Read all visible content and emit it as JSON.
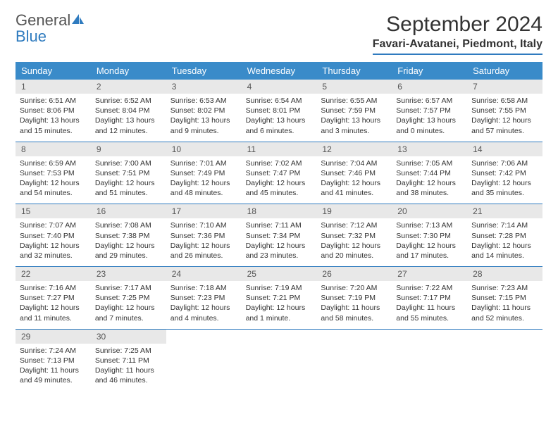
{
  "logo": {
    "text1": "General",
    "text2": "Blue"
  },
  "title": "September 2024",
  "location": "Favari-Avatanei, Piedmont, Italy",
  "colors": {
    "header_bg": "#3a8bc9",
    "rule": "#2f7bbf",
    "daynum_bg": "#e8e8e8",
    "text": "#333333"
  },
  "weekdays": [
    "Sunday",
    "Monday",
    "Tuesday",
    "Wednesday",
    "Thursday",
    "Friday",
    "Saturday"
  ],
  "weeks": [
    [
      {
        "n": "1",
        "sr": "Sunrise: 6:51 AM",
        "ss": "Sunset: 8:06 PM",
        "d1": "Daylight: 13 hours",
        "d2": "and 15 minutes."
      },
      {
        "n": "2",
        "sr": "Sunrise: 6:52 AM",
        "ss": "Sunset: 8:04 PM",
        "d1": "Daylight: 13 hours",
        "d2": "and 12 minutes."
      },
      {
        "n": "3",
        "sr": "Sunrise: 6:53 AM",
        "ss": "Sunset: 8:02 PM",
        "d1": "Daylight: 13 hours",
        "d2": "and 9 minutes."
      },
      {
        "n": "4",
        "sr": "Sunrise: 6:54 AM",
        "ss": "Sunset: 8:01 PM",
        "d1": "Daylight: 13 hours",
        "d2": "and 6 minutes."
      },
      {
        "n": "5",
        "sr": "Sunrise: 6:55 AM",
        "ss": "Sunset: 7:59 PM",
        "d1": "Daylight: 13 hours",
        "d2": "and 3 minutes."
      },
      {
        "n": "6",
        "sr": "Sunrise: 6:57 AM",
        "ss": "Sunset: 7:57 PM",
        "d1": "Daylight: 13 hours",
        "d2": "and 0 minutes."
      },
      {
        "n": "7",
        "sr": "Sunrise: 6:58 AM",
        "ss": "Sunset: 7:55 PM",
        "d1": "Daylight: 12 hours",
        "d2": "and 57 minutes."
      }
    ],
    [
      {
        "n": "8",
        "sr": "Sunrise: 6:59 AM",
        "ss": "Sunset: 7:53 PM",
        "d1": "Daylight: 12 hours",
        "d2": "and 54 minutes."
      },
      {
        "n": "9",
        "sr": "Sunrise: 7:00 AM",
        "ss": "Sunset: 7:51 PM",
        "d1": "Daylight: 12 hours",
        "d2": "and 51 minutes."
      },
      {
        "n": "10",
        "sr": "Sunrise: 7:01 AM",
        "ss": "Sunset: 7:49 PM",
        "d1": "Daylight: 12 hours",
        "d2": "and 48 minutes."
      },
      {
        "n": "11",
        "sr": "Sunrise: 7:02 AM",
        "ss": "Sunset: 7:47 PM",
        "d1": "Daylight: 12 hours",
        "d2": "and 45 minutes."
      },
      {
        "n": "12",
        "sr": "Sunrise: 7:04 AM",
        "ss": "Sunset: 7:46 PM",
        "d1": "Daylight: 12 hours",
        "d2": "and 41 minutes."
      },
      {
        "n": "13",
        "sr": "Sunrise: 7:05 AM",
        "ss": "Sunset: 7:44 PM",
        "d1": "Daylight: 12 hours",
        "d2": "and 38 minutes."
      },
      {
        "n": "14",
        "sr": "Sunrise: 7:06 AM",
        "ss": "Sunset: 7:42 PM",
        "d1": "Daylight: 12 hours",
        "d2": "and 35 minutes."
      }
    ],
    [
      {
        "n": "15",
        "sr": "Sunrise: 7:07 AM",
        "ss": "Sunset: 7:40 PM",
        "d1": "Daylight: 12 hours",
        "d2": "and 32 minutes."
      },
      {
        "n": "16",
        "sr": "Sunrise: 7:08 AM",
        "ss": "Sunset: 7:38 PM",
        "d1": "Daylight: 12 hours",
        "d2": "and 29 minutes."
      },
      {
        "n": "17",
        "sr": "Sunrise: 7:10 AM",
        "ss": "Sunset: 7:36 PM",
        "d1": "Daylight: 12 hours",
        "d2": "and 26 minutes."
      },
      {
        "n": "18",
        "sr": "Sunrise: 7:11 AM",
        "ss": "Sunset: 7:34 PM",
        "d1": "Daylight: 12 hours",
        "d2": "and 23 minutes."
      },
      {
        "n": "19",
        "sr": "Sunrise: 7:12 AM",
        "ss": "Sunset: 7:32 PM",
        "d1": "Daylight: 12 hours",
        "d2": "and 20 minutes."
      },
      {
        "n": "20",
        "sr": "Sunrise: 7:13 AM",
        "ss": "Sunset: 7:30 PM",
        "d1": "Daylight: 12 hours",
        "d2": "and 17 minutes."
      },
      {
        "n": "21",
        "sr": "Sunrise: 7:14 AM",
        "ss": "Sunset: 7:28 PM",
        "d1": "Daylight: 12 hours",
        "d2": "and 14 minutes."
      }
    ],
    [
      {
        "n": "22",
        "sr": "Sunrise: 7:16 AM",
        "ss": "Sunset: 7:27 PM",
        "d1": "Daylight: 12 hours",
        "d2": "and 11 minutes."
      },
      {
        "n": "23",
        "sr": "Sunrise: 7:17 AM",
        "ss": "Sunset: 7:25 PM",
        "d1": "Daylight: 12 hours",
        "d2": "and 7 minutes."
      },
      {
        "n": "24",
        "sr": "Sunrise: 7:18 AM",
        "ss": "Sunset: 7:23 PM",
        "d1": "Daylight: 12 hours",
        "d2": "and 4 minutes."
      },
      {
        "n": "25",
        "sr": "Sunrise: 7:19 AM",
        "ss": "Sunset: 7:21 PM",
        "d1": "Daylight: 12 hours",
        "d2": "and 1 minute."
      },
      {
        "n": "26",
        "sr": "Sunrise: 7:20 AM",
        "ss": "Sunset: 7:19 PM",
        "d1": "Daylight: 11 hours",
        "d2": "and 58 minutes."
      },
      {
        "n": "27",
        "sr": "Sunrise: 7:22 AM",
        "ss": "Sunset: 7:17 PM",
        "d1": "Daylight: 11 hours",
        "d2": "and 55 minutes."
      },
      {
        "n": "28",
        "sr": "Sunrise: 7:23 AM",
        "ss": "Sunset: 7:15 PM",
        "d1": "Daylight: 11 hours",
        "d2": "and 52 minutes."
      }
    ],
    [
      {
        "n": "29",
        "sr": "Sunrise: 7:24 AM",
        "ss": "Sunset: 7:13 PM",
        "d1": "Daylight: 11 hours",
        "d2": "and 49 minutes."
      },
      {
        "n": "30",
        "sr": "Sunrise: 7:25 AM",
        "ss": "Sunset: 7:11 PM",
        "d1": "Daylight: 11 hours",
        "d2": "and 46 minutes."
      },
      null,
      null,
      null,
      null,
      null
    ]
  ]
}
